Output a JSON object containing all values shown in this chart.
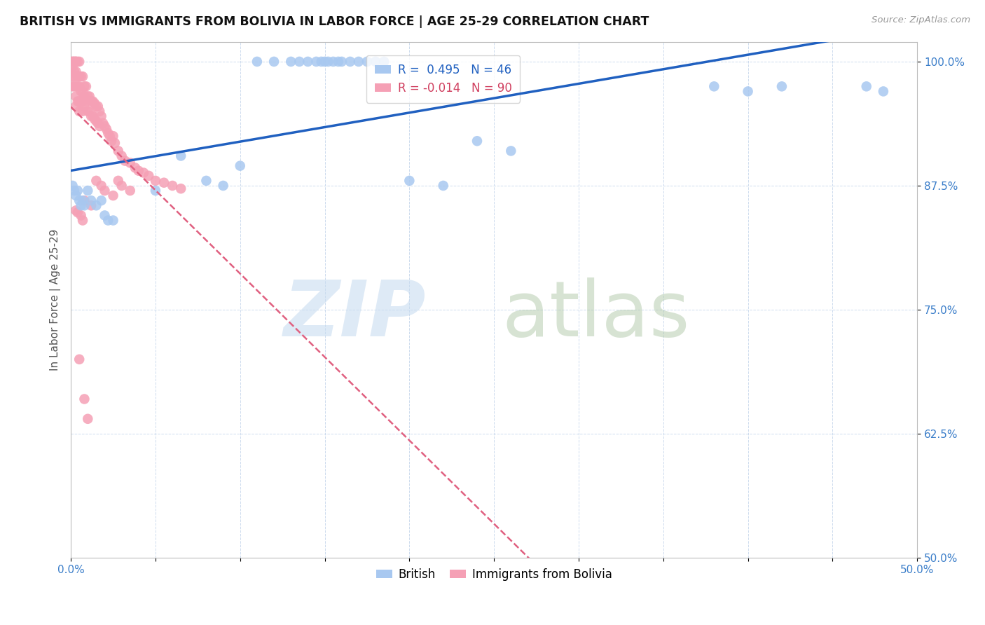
{
  "title": "BRITISH VS IMMIGRANTS FROM BOLIVIA IN LABOR FORCE | AGE 25-29 CORRELATION CHART",
  "source": "Source: ZipAtlas.com",
  "ylabel": "In Labor Force | Age 25-29",
  "xmin": 0.0,
  "xmax": 0.5,
  "ymin": 0.5,
  "ymax": 1.02,
  "yticks": [
    0.5,
    0.625,
    0.75,
    0.875,
    1.0
  ],
  "ytick_labels": [
    "50.0%",
    "62.5%",
    "75.0%",
    "87.5%",
    "100.0%"
  ],
  "xticks": [
    0.0,
    0.05,
    0.1,
    0.15,
    0.2,
    0.25,
    0.3,
    0.35,
    0.4,
    0.45,
    0.5
  ],
  "xtick_labels": [
    "0.0%",
    "",
    "",
    "",
    "",
    "",
    "",
    "",
    "",
    "",
    "50.0%"
  ],
  "legend_british_label": "R =  0.495   N = 46",
  "legend_bolivia_label": "R = -0.014   N = 90",
  "british_color": "#A8C8F0",
  "bolivia_color": "#F5A0B5",
  "british_line_color": "#2060C0",
  "bolivia_line_color": "#E06080",
  "british_x": [
    0.001,
    0.002,
    0.003,
    0.004,
    0.005,
    0.006,
    0.007,
    0.008,
    0.01,
    0.012,
    0.015,
    0.018,
    0.02,
    0.022,
    0.025,
    0.11,
    0.12,
    0.13,
    0.135,
    0.14,
    0.145,
    0.148,
    0.15,
    0.152,
    0.155,
    0.158,
    0.16,
    0.165,
    0.17,
    0.175,
    0.18,
    0.185,
    0.24,
    0.26,
    0.38,
    0.4,
    0.42,
    0.47,
    0.48,
    0.05,
    0.065,
    0.08,
    0.09,
    0.1,
    0.2,
    0.22
  ],
  "british_y": [
    0.875,
    0.87,
    0.865,
    0.87,
    0.86,
    0.855,
    0.86,
    0.855,
    0.87,
    0.86,
    0.855,
    0.86,
    0.845,
    0.84,
    0.84,
    1.0,
    1.0,
    1.0,
    1.0,
    1.0,
    1.0,
    1.0,
    1.0,
    1.0,
    1.0,
    1.0,
    1.0,
    1.0,
    1.0,
    1.0,
    1.0,
    1.0,
    0.92,
    0.91,
    0.975,
    0.97,
    0.975,
    0.975,
    0.97,
    0.87,
    0.905,
    0.88,
    0.875,
    0.895,
    0.88,
    0.875
  ],
  "bolivia_x": [
    0.001,
    0.001,
    0.001,
    0.001,
    0.001,
    0.002,
    0.002,
    0.002,
    0.002,
    0.002,
    0.003,
    0.003,
    0.003,
    0.003,
    0.003,
    0.003,
    0.004,
    0.004,
    0.004,
    0.004,
    0.005,
    0.005,
    0.005,
    0.005,
    0.005,
    0.006,
    0.006,
    0.006,
    0.007,
    0.007,
    0.007,
    0.007,
    0.008,
    0.008,
    0.008,
    0.009,
    0.009,
    0.01,
    0.01,
    0.011,
    0.011,
    0.012,
    0.012,
    0.013,
    0.013,
    0.014,
    0.014,
    0.015,
    0.015,
    0.016,
    0.016,
    0.017,
    0.017,
    0.018,
    0.019,
    0.02,
    0.021,
    0.022,
    0.023,
    0.024,
    0.025,
    0.026,
    0.028,
    0.03,
    0.032,
    0.035,
    0.038,
    0.04,
    0.043,
    0.046,
    0.05,
    0.055,
    0.06,
    0.065,
    0.028,
    0.03,
    0.035,
    0.005,
    0.008,
    0.01,
    0.015,
    0.018,
    0.02,
    0.025,
    0.008,
    0.012,
    0.003,
    0.004,
    0.006,
    0.007
  ],
  "bolivia_y": [
    1.0,
    1.0,
    0.995,
    0.985,
    0.975,
    1.0,
    1.0,
    0.99,
    0.985,
    0.975,
    1.0,
    1.0,
    0.99,
    0.975,
    0.965,
    0.955,
    1.0,
    0.985,
    0.975,
    0.96,
    1.0,
    0.985,
    0.975,
    0.96,
    0.95,
    0.985,
    0.97,
    0.96,
    0.985,
    0.97,
    0.96,
    0.95,
    0.975,
    0.965,
    0.955,
    0.975,
    0.96,
    0.965,
    0.95,
    0.965,
    0.95,
    0.96,
    0.945,
    0.96,
    0.945,
    0.958,
    0.942,
    0.955,
    0.94,
    0.955,
    0.938,
    0.95,
    0.935,
    0.945,
    0.938,
    0.935,
    0.932,
    0.928,
    0.925,
    0.92,
    0.925,
    0.918,
    0.91,
    0.905,
    0.9,
    0.898,
    0.893,
    0.89,
    0.888,
    0.885,
    0.88,
    0.878,
    0.875,
    0.872,
    0.88,
    0.875,
    0.87,
    0.7,
    0.66,
    0.64,
    0.88,
    0.875,
    0.87,
    0.865,
    0.86,
    0.855,
    0.85,
    0.848,
    0.845,
    0.84
  ]
}
